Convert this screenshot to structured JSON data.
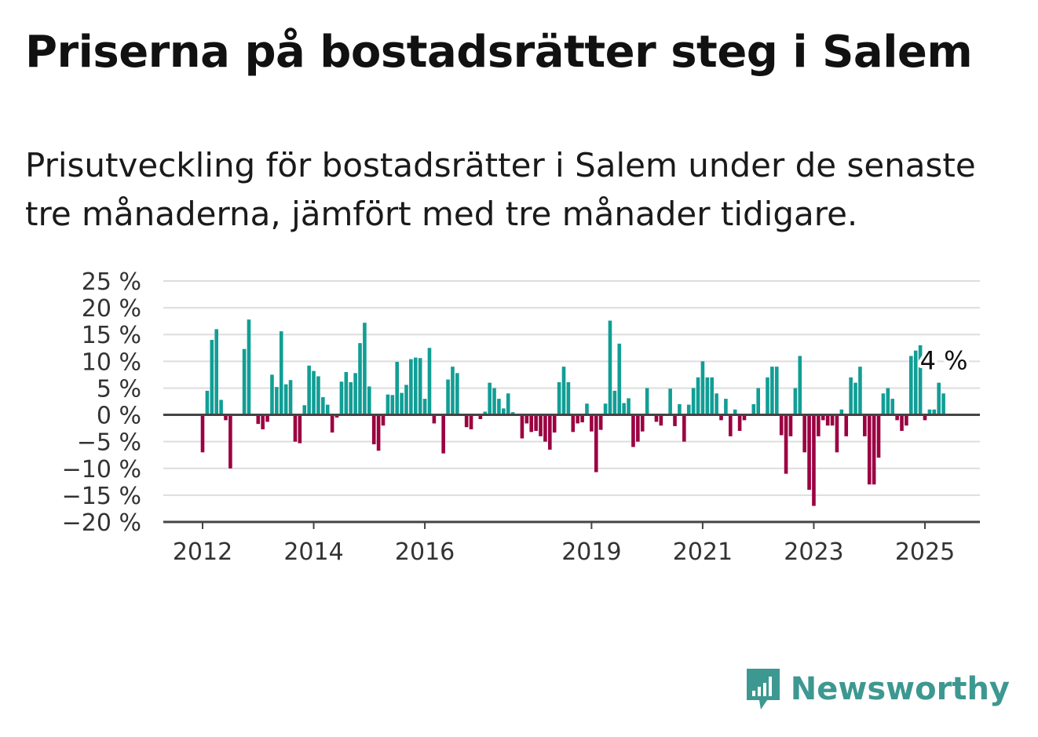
{
  "title": "Priserna på bostadsrätter steg i Salem",
  "subtitle": "Prisutveckling för bostadsrätter i Salem under de senaste tre månaderna, jämfört med tre månader tidigare.",
  "brand": {
    "name": "Newsworthy",
    "color": "#3d9891"
  },
  "colors": {
    "positive": "#119e95",
    "negative": "#9b0041",
    "grid": "#dddddd",
    "axis": "#444444"
  },
  "chart_data": {
    "type": "bar",
    "title": "Priserna på bostadsrätter steg i Salem",
    "subtitle": "Prisutveckling för bostadsrätter i Salem under de senaste tre månaderna, jämfört med tre månader tidigare.",
    "xlabel": "",
    "ylabel": "",
    "unit": "%",
    "ylim": [
      -20,
      25
    ],
    "y_ticks": [
      25,
      20,
      15,
      10,
      5,
      0,
      -5,
      -10,
      -15,
      -20
    ],
    "y_tick_labels": [
      "25 %",
      "20 %",
      "15 %",
      "10 %",
      "5 %",
      "0 %",
      "−5 %",
      "−10 %",
      "−15 %",
      "−20 %"
    ],
    "x_range": [
      "2012-01",
      "2025-10"
    ],
    "x_tick_labels": [
      "2012",
      "2014",
      "2016",
      "2019",
      "2021",
      "2023",
      "2025"
    ],
    "grid": true,
    "last_value_label": "4 %",
    "series": [
      {
        "values": [
          -7,
          4.5,
          14,
          16,
          2.8,
          -1,
          -10,
          0,
          0,
          12.3,
          17.8,
          0,
          -1.7,
          -2.7,
          -1.3,
          7.5,
          5.2,
          15.6,
          5.7,
          6.5,
          -5,
          -5.3,
          1.8,
          9.2,
          8.2,
          7.2,
          3.3,
          1.9,
          -3.3,
          -0.5,
          6.2,
          8,
          6.1,
          7.8,
          13.4,
          17.2,
          5.3,
          -5.5,
          -6.7,
          -2,
          3.8,
          3.7,
          9.9,
          4.1,
          5.6,
          10.4,
          10.7,
          10.6,
          3,
          12.5,
          -1.6,
          0,
          -7.2,
          6.6,
          9,
          7.8,
          0,
          -2.3,
          -2.7,
          0,
          -0.8,
          0.6,
          6,
          5,
          3,
          1.2,
          4,
          0.5,
          0,
          -4.4,
          -1.6,
          -3.2,
          -3,
          -4,
          -5,
          -6.5,
          -3.3,
          6.1,
          9,
          6.1,
          -3.2,
          -1.6,
          -1.4,
          2.1,
          -3.1,
          -10.7,
          -2.8,
          2.1,
          17.6,
          4.5,
          13.3,
          2.2,
          3.1,
          -6,
          -5,
          -3.1,
          5,
          0,
          -1.3,
          -2,
          0,
          4.9,
          -2.1,
          2,
          -5,
          1.9,
          5,
          7,
          10,
          7,
          7,
          4,
          -1,
          3,
          -4,
          1,
          -3,
          -1,
          0,
          2,
          5,
          0,
          7,
          9,
          9,
          -3.8,
          -11,
          -4,
          5,
          11,
          -7,
          -14,
          -17,
          -4,
          -1,
          -2,
          -2,
          -7,
          1,
          -4,
          7,
          6,
          9,
          -4,
          -13,
          -13,
          -8,
          4,
          5,
          3,
          -1,
          -3,
          -2,
          11,
          12,
          13,
          -1,
          1,
          1,
          6,
          4
        ]
      }
    ]
  }
}
